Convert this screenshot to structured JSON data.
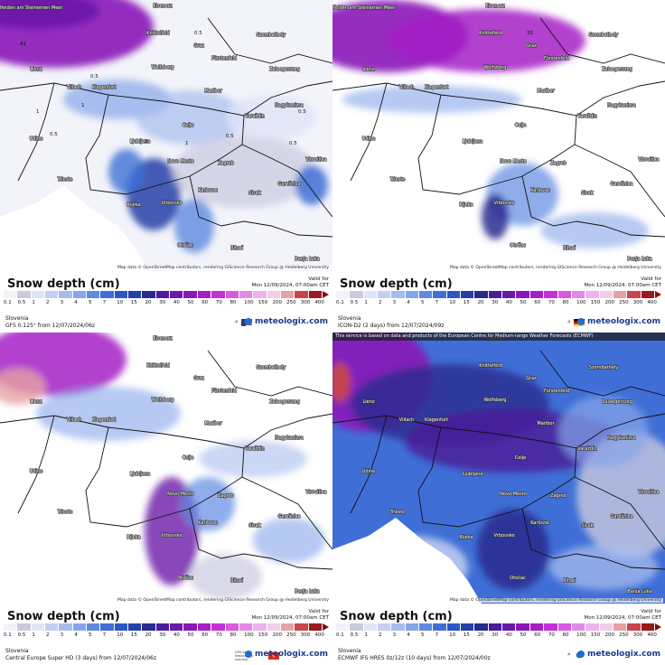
{
  "panels": [
    {
      "title": "Snow depth (cm)",
      "valid_label": "Valid for",
      "valid_time": "Mon 12/09/2024, 07:00am CET",
      "region": "Slovenia",
      "model": "GFS 0.125° from  12/07/2024/06z",
      "flag": "usa",
      "brand": "meteologix.com",
      "attribution": "Map data © OpenStreetMap contributors, rendering GIScience Research Group @ Heidelberg University",
      "banner": "",
      "theme": "light",
      "cities": [
        "Saalfelden am Steinernen Meer",
        "Eisenerz",
        "Knittelfeld",
        "Graz",
        "Fürstenfeld",
        "Szombathely",
        "Lienz",
        "Wolfsberg",
        "Zalaegerszeg",
        "Villach",
        "Klagenfurt",
        "Maribor",
        "Nagykanizsa",
        "Udine",
        "Celje",
        "Ljubljana",
        "Varaždin",
        "Novo Mesto",
        "Zagreb",
        "Virovitica",
        "Karlovac",
        "Sisak",
        "Garešnica",
        "Rijeka",
        "Vrbovsko",
        "Otočac",
        "Bihać",
        "Banja Luka",
        "Trieste"
      ],
      "contour_labels": [
        "0.5",
        "0.5",
        "1",
        "2",
        "1",
        "0.5",
        "0.5",
        "1",
        "41",
        "0.5",
        "0.5"
      ]
    },
    {
      "title": "Snow depth (cm)",
      "valid_label": "Valid for",
      "valid_time": "Mon 12/09/2024, 07:00am CET",
      "region": "Slovenia",
      "model": "ICON-D2 (2 days) from  12/07/2024/09z",
      "flag": "germany",
      "brand": "meteologix.com",
      "attribution": "Map data © OpenStreetMap contributors, rendering GIScience Research Group @ Heidelberg University",
      "banner": "",
      "theme": "sparse",
      "cities": [
        "Saalfelden am Steinernen Meer",
        "Eisenerz",
        "Knittelfeld",
        "Graz",
        "Fürstenfeld",
        "Szombathely",
        "Lienz",
        "Wolfsberg",
        "Zalaegerszeg",
        "Villach",
        "Klagenfurt",
        "Maribor",
        "Nagykanizsa",
        "Udine",
        "Celje",
        "Ljubljana",
        "Varaždin",
        "Novo Mesto",
        "Zagreb",
        "Virovitica",
        "Karlovac",
        "Sisak",
        "Garešnica",
        "Rijeka",
        "Vrbovsko",
        "Otočac",
        "Bihać",
        "Banja Luka",
        "Trieste"
      ],
      "contour_labels": [
        "35"
      ]
    },
    {
      "title": "Snow depth (cm)",
      "valid_label": "Valid for",
      "valid_time": "Mon 12/09/2024, 07:00am CET",
      "region": "Slovenia",
      "model": "Central Europe Super HD (3 days) from  12/07/2024/06z",
      "flag": "swiss",
      "brand": "meteologix.com",
      "attribution": "Map data © OpenStreetMap contributors, rendering GIScience Research Group @ Heidelberg University",
      "banner": "",
      "theme": "patchy",
      "gpu_note": "GPU power featured by uvensys",
      "cities": [
        "Eisenerz",
        "Knittelfeld",
        "Graz",
        "Fürstenfeld",
        "Szombathely",
        "Lienz",
        "Wolfsberg",
        "Zalaegerszeg",
        "Villach",
        "Klagenfurt",
        "Maribor",
        "Nagykanizsa",
        "Udine",
        "Celje",
        "Ljubljana",
        "Varaždin",
        "Novo Mesto",
        "Zagreb",
        "Virovitica",
        "Karlovac",
        "Sisak",
        "Garešnica",
        "Rijeka",
        "Vrbovsko",
        "Otočac",
        "Bihać",
        "Banja Luka",
        "Trieste"
      ],
      "contour_labels": []
    },
    {
      "title": "Snow depth (cm)",
      "valid_label": "Valid for",
      "valid_time": "Mon 12/09/2024, 07:00am CET",
      "region": "Slovenia",
      "model": "ECMWF IFS HRES 0z/12z (10 days) from  12/07/2024/00z",
      "flag": "ecmwf",
      "brand": "meteologix.com",
      "attribution": "Map data © OpenStreetMap contributors, rendering GIScience Research Group @ Heidelberg University",
      "banner": "This service is based on data and products of the European Centre for Medium-range Weather Forecasts (ECMWF)",
      "theme": "heavy",
      "cities": [
        "Eisenerz",
        "Knittelfeld",
        "Graz",
        "Fürstenfeld",
        "Szombathely",
        "Lienz",
        "Wolfsberg",
        "Zalaegerszeg",
        "Villach",
        "Klagenfurt",
        "Maribor",
        "Nagykanizsa",
        "Udine",
        "Celje",
        "Ljubljana",
        "Varaždin",
        "Novo Mesto",
        "Zagreb",
        "Virovitica",
        "Karlovac",
        "Sisak",
        "Garešnica",
        "Rijeka",
        "Vrbovsko",
        "Otočac",
        "Bihać",
        "Banja Luka",
        "Trieste"
      ],
      "contour_labels": []
    }
  ],
  "legend": {
    "ticks": [
      "0.1",
      "0.5",
      "1",
      "2",
      "3",
      "4",
      "5",
      "7",
      "10",
      "15",
      "20",
      "30",
      "40",
      "50",
      "60",
      "70",
      "80",
      "100",
      "150",
      "200",
      "250",
      "300",
      "400"
    ],
    "colors": [
      "#f2f2f8",
      "#c9c9df",
      "#dfe4f7",
      "#c3d0f2",
      "#a7bcee",
      "#86a5ea",
      "#5f8ae2",
      "#3f6fd6",
      "#2a57c4",
      "#2340a8",
      "#2a2a8e",
      "#4a1d9a",
      "#6a1aa8",
      "#8a18b8",
      "#a51ec6",
      "#c431d6",
      "#d85ae0",
      "#e38ae8",
      "#ecb3ee",
      "#f0cfe6",
      "#e7a2a4",
      "#c8454a",
      "#9a1a1e"
    ]
  }
}
